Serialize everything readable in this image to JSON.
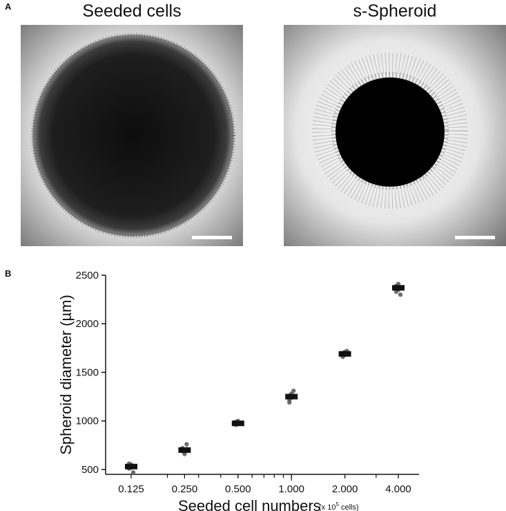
{
  "panel_a": {
    "letter": "A",
    "images": [
      {
        "title": "Seeded cells",
        "kind": "dense-disk"
      },
      {
        "title": "s-Spheroid",
        "kind": "compact-spheroid"
      }
    ]
  },
  "panel_b": {
    "letter": "B"
  },
  "chart_data": {
    "type": "scatter",
    "x_scale": "log2",
    "categories": [
      "0.125",
      "0.250",
      "0.500",
      "1.000",
      "2.000",
      "4.000"
    ],
    "x": [
      0.125,
      0.25,
      0.5,
      1.0,
      2.0,
      4.0
    ],
    "ylabel": "Spheroid diameter (µm)",
    "xlabel": "Seeded cell numbers",
    "xlabel_unit_prefix": "(x 10",
    "xlabel_unit_exp": "5",
    "xlabel_unit_suffix": " cells)",
    "ylim": [
      450,
      2500
    ],
    "yticks": [
      500,
      1000,
      1500,
      2000,
      2500
    ],
    "medians": [
      530,
      700,
      975,
      1250,
      1690,
      2370
    ],
    "points": [
      [
        510,
        520,
        530,
        540,
        550,
        470,
        560
      ],
      [
        690,
        700,
        710,
        720,
        660,
        760
      ],
      [
        960,
        970,
        980,
        990,
        1000
      ],
      [
        1220,
        1240,
        1250,
        1260,
        1280,
        1310,
        1190
      ],
      [
        1660,
        1680,
        1690,
        1700,
        1710,
        1720
      ],
      [
        2330,
        2350,
        2370,
        2390,
        2410,
        2300
      ]
    ],
    "marker_color": "#555555",
    "box_color": "#111111",
    "grid": false
  }
}
